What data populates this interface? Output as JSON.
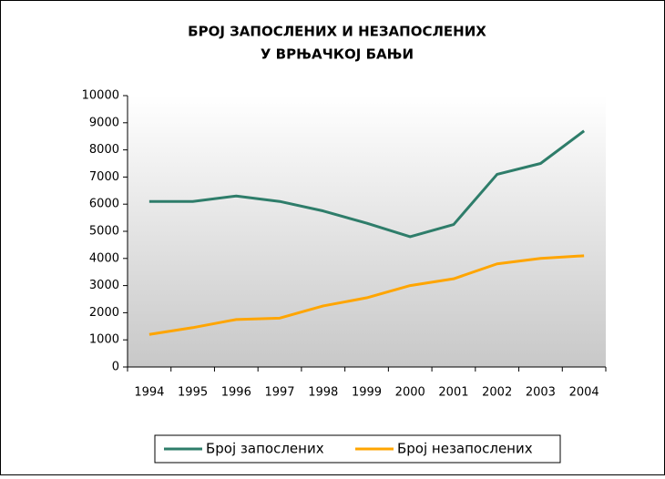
{
  "chart_data": {
    "type": "line",
    "title": [
      "БРОЈ ЗАПОСЛЕНИХ И НЕЗАПОСЛЕНИХ",
      "У ВРЊАЧКОЈ БАЊИ"
    ],
    "categories": [
      "1994",
      "1995",
      "1996",
      "1997",
      "1998",
      "1999",
      "2000",
      "2001",
      "2002",
      "2003",
      "2004"
    ],
    "series": [
      {
        "name": "Број запослених",
        "color": "#2e7d6a",
        "values": [
          6100,
          6100,
          6300,
          6100,
          5750,
          5300,
          4800,
          5250,
          7100,
          7500,
          8700
        ]
      },
      {
        "name": "Број незапослених",
        "color": "#ffa500",
        "values": [
          1200,
          1450,
          1750,
          1800,
          2250,
          2550,
          3000,
          3250,
          3800,
          4000,
          4100
        ]
      }
    ],
    "ylim": [
      0,
      10000
    ],
    "yticks": [
      0,
      1000,
      2000,
      3000,
      4000,
      5000,
      6000,
      7000,
      8000,
      9000,
      10000
    ],
    "legend": "bottom"
  }
}
